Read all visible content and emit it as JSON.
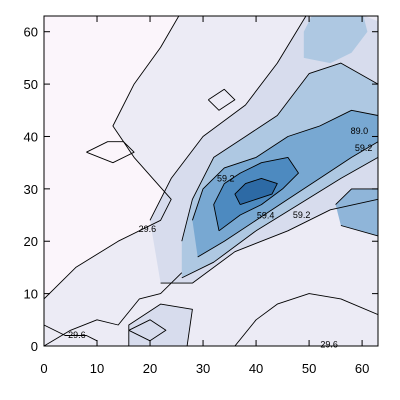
{
  "chart_data": {
    "type": "heatmap",
    "title": "",
    "xlabel": "",
    "ylabel": "",
    "xlim": [
      0,
      63
    ],
    "ylim": [
      0,
      63
    ],
    "x_ticks": [
      0,
      10,
      20,
      30,
      40,
      50,
      60
    ],
    "y_ticks": [
      0,
      10,
      20,
      30,
      40,
      50,
      60
    ],
    "grid": false,
    "colorscale": {
      "low": "#fbf5fb",
      "high": "#1f5c96"
    },
    "contour_labels": [
      {
        "text": "29.6",
        "x": 6.2,
        "y": 1.5
      },
      {
        "text": "29.6",
        "x": 53.8,
        "y": -0.3
      },
      {
        "text": "29.6",
        "x": 19.5,
        "y": 21.8
      },
      {
        "text": "59.2",
        "x": 34.3,
        "y": 31.4
      },
      {
        "text": "59.2",
        "x": 48.6,
        "y": 24.4
      },
      {
        "text": "59.2",
        "x": 60.3,
        "y": 37.2
      },
      {
        "text": "59.4",
        "x": 41.8,
        "y": 24.3
      },
      {
        "text": "89.0",
        "x": 59.5,
        "y": 40.5
      }
    ],
    "regions": [
      {
        "name": "level-1",
        "fill": "#ecebf5",
        "points": [
          [
            0,
            0
          ],
          [
            63,
            0
          ],
          [
            63,
            64
          ],
          [
            26,
            64
          ],
          [
            22,
            57
          ],
          [
            17,
            50
          ],
          [
            13,
            42
          ],
          [
            17,
            36
          ],
          [
            24,
            28
          ],
          [
            22,
            24
          ],
          [
            14,
            20
          ],
          [
            6,
            15
          ],
          [
            2,
            11
          ],
          [
            0,
            9
          ]
        ]
      },
      {
        "name": "level-2",
        "fill": "#d7dced",
        "points": [
          [
            22,
            12
          ],
          [
            28,
            12
          ],
          [
            36,
            18
          ],
          [
            46,
            22
          ],
          [
            54,
            26
          ],
          [
            63,
            28
          ],
          [
            63,
            62
          ],
          [
            58,
            64
          ],
          [
            50,
            64
          ],
          [
            44,
            54
          ],
          [
            38,
            46
          ],
          [
            30,
            40
          ],
          [
            24,
            32
          ],
          [
            20,
            24
          ]
        ]
      },
      {
        "name": "level-3",
        "fill": "#aec8e2",
        "points": [
          [
            26,
            13
          ],
          [
            32,
            16
          ],
          [
            40,
            22
          ],
          [
            48,
            27
          ],
          [
            56,
            32
          ],
          [
            63,
            36
          ],
          [
            63,
            50
          ],
          [
            56,
            54
          ],
          [
            50,
            52
          ],
          [
            44,
            44
          ],
          [
            38,
            40
          ],
          [
            32,
            36
          ],
          [
            28,
            28
          ],
          [
            26,
            20
          ]
        ]
      },
      {
        "name": "level-3b",
        "fill": "#aec8e2",
        "points": [
          [
            49,
            55
          ],
          [
            54,
            54
          ],
          [
            58,
            56
          ],
          [
            61,
            60
          ],
          [
            60,
            64
          ],
          [
            51,
            64
          ],
          [
            49,
            60
          ]
        ]
      },
      {
        "name": "level-4",
        "fill": "#78a8d2",
        "points": [
          [
            29,
            17
          ],
          [
            34,
            20
          ],
          [
            40,
            24
          ],
          [
            46,
            28
          ],
          [
            52,
            32
          ],
          [
            58,
            36
          ],
          [
            63,
            39
          ],
          [
            63,
            44
          ],
          [
            58,
            45
          ],
          [
            52,
            42
          ],
          [
            46,
            40
          ],
          [
            40,
            36
          ],
          [
            34,
            34
          ],
          [
            30,
            30
          ],
          [
            28,
            24
          ]
        ]
      },
      {
        "name": "level-5",
        "fill": "#4d8ac0",
        "points": [
          [
            33,
            22
          ],
          [
            37,
            25
          ],
          [
            41,
            27
          ],
          [
            45,
            30
          ],
          [
            48,
            33
          ],
          [
            46,
            36
          ],
          [
            41,
            35
          ],
          [
            37,
            33
          ],
          [
            34,
            31
          ],
          [
            32,
            27
          ]
        ]
      },
      {
        "name": "level-6",
        "fill": "#2d6aa5",
        "points": [
          [
            37,
            27
          ],
          [
            40,
            28
          ],
          [
            43,
            29
          ],
          [
            44,
            31
          ],
          [
            41,
            32
          ],
          [
            38,
            31
          ],
          [
            36,
            29
          ]
        ]
      },
      {
        "name": "right-band",
        "fill": "#8fb5d9",
        "points": [
          [
            56,
            23
          ],
          [
            63,
            21
          ],
          [
            63,
            30
          ],
          [
            58,
            30
          ],
          [
            55,
            27
          ]
        ]
      },
      {
        "name": "bottom-left-light",
        "fill": "#d7dced",
        "points": [
          [
            16,
            0
          ],
          [
            27,
            0
          ],
          [
            28,
            7
          ],
          [
            22,
            8
          ],
          [
            16,
            4
          ]
        ]
      }
    ],
    "contour_lines": [
      [
        [
          0,
          9
        ],
        [
          2,
          11
        ],
        [
          6,
          15
        ],
        [
          14,
          20
        ],
        [
          22,
          24
        ],
        [
          24,
          28
        ],
        [
          17,
          36
        ],
        [
          13,
          42
        ],
        [
          17,
          50
        ],
        [
          22,
          57
        ],
        [
          26,
          64
        ]
      ],
      [
        [
          22,
          12
        ],
        [
          28,
          12
        ],
        [
          36,
          18
        ],
        [
          46,
          22
        ],
        [
          54,
          26
        ],
        [
          63,
          28
        ]
      ],
      [
        [
          20,
          24
        ],
        [
          24,
          32
        ],
        [
          30,
          40
        ],
        [
          38,
          46
        ],
        [
          44,
          54
        ],
        [
          50,
          64
        ]
      ],
      [
        [
          26,
          13
        ],
        [
          32,
          16
        ],
        [
          40,
          22
        ],
        [
          48,
          27
        ],
        [
          56,
          32
        ],
        [
          63,
          36
        ]
      ],
      [
        [
          26,
          20
        ],
        [
          28,
          28
        ],
        [
          32,
          36
        ],
        [
          38,
          40
        ],
        [
          44,
          44
        ],
        [
          50,
          52
        ],
        [
          56,
          54
        ],
        [
          63,
          50
        ]
      ],
      [
        [
          29,
          17
        ],
        [
          34,
          20
        ],
        [
          40,
          24
        ],
        [
          46,
          28
        ],
        [
          52,
          32
        ],
        [
          58,
          36
        ],
        [
          63,
          39
        ]
      ],
      [
        [
          28,
          24
        ],
        [
          30,
          30
        ],
        [
          34,
          34
        ],
        [
          40,
          36
        ],
        [
          46,
          40
        ],
        [
          52,
          42
        ],
        [
          58,
          45
        ],
        [
          63,
          44
        ]
      ],
      [
        [
          33,
          22
        ],
        [
          37,
          25
        ],
        [
          41,
          27
        ],
        [
          45,
          30
        ],
        [
          48,
          33
        ],
        [
          46,
          36
        ],
        [
          41,
          35
        ],
        [
          37,
          33
        ],
        [
          34,
          31
        ],
        [
          32,
          27
        ],
        [
          33,
          22
        ]
      ],
      [
        [
          37,
          27
        ],
        [
          40,
          28
        ],
        [
          43,
          29
        ],
        [
          44,
          31
        ],
        [
          41,
          32
        ],
        [
          38,
          31
        ],
        [
          36,
          29
        ],
        [
          37,
          27
        ]
      ],
      [
        [
          56,
          23
        ],
        [
          63,
          21
        ]
      ],
      [
        [
          55,
          27
        ],
        [
          58,
          30
        ],
        [
          63,
          30
        ]
      ],
      [
        [
          16,
          0
        ],
        [
          16,
          4
        ],
        [
          22,
          8
        ],
        [
          28,
          7
        ],
        [
          27,
          0
        ]
      ],
      [
        [
          0,
          0
        ],
        [
          5,
          3
        ],
        [
          10,
          5
        ],
        [
          14,
          4
        ],
        [
          18,
          9
        ],
        [
          22,
          10
        ],
        [
          26,
          14
        ]
      ],
      [
        [
          0,
          4
        ],
        [
          4,
          2
        ],
        [
          8,
          2
        ],
        [
          10,
          1
        ]
      ],
      [
        [
          36,
          0
        ],
        [
          40,
          5
        ],
        [
          44,
          8
        ],
        [
          50,
          10
        ],
        [
          56,
          9
        ],
        [
          63,
          6
        ]
      ],
      [
        [
          8,
          37
        ],
        [
          12,
          39
        ],
        [
          15,
          39
        ],
        [
          17,
          37
        ],
        [
          13,
          35
        ],
        [
          8,
          37
        ]
      ],
      [
        [
          31,
          47
        ],
        [
          34,
          49
        ],
        [
          36,
          47
        ],
        [
          33,
          45
        ],
        [
          31,
          47
        ]
      ],
      [
        [
          16,
          3
        ],
        [
          20,
          1
        ],
        [
          23,
          3
        ],
        [
          20,
          5
        ],
        [
          16,
          3
        ]
      ]
    ]
  }
}
